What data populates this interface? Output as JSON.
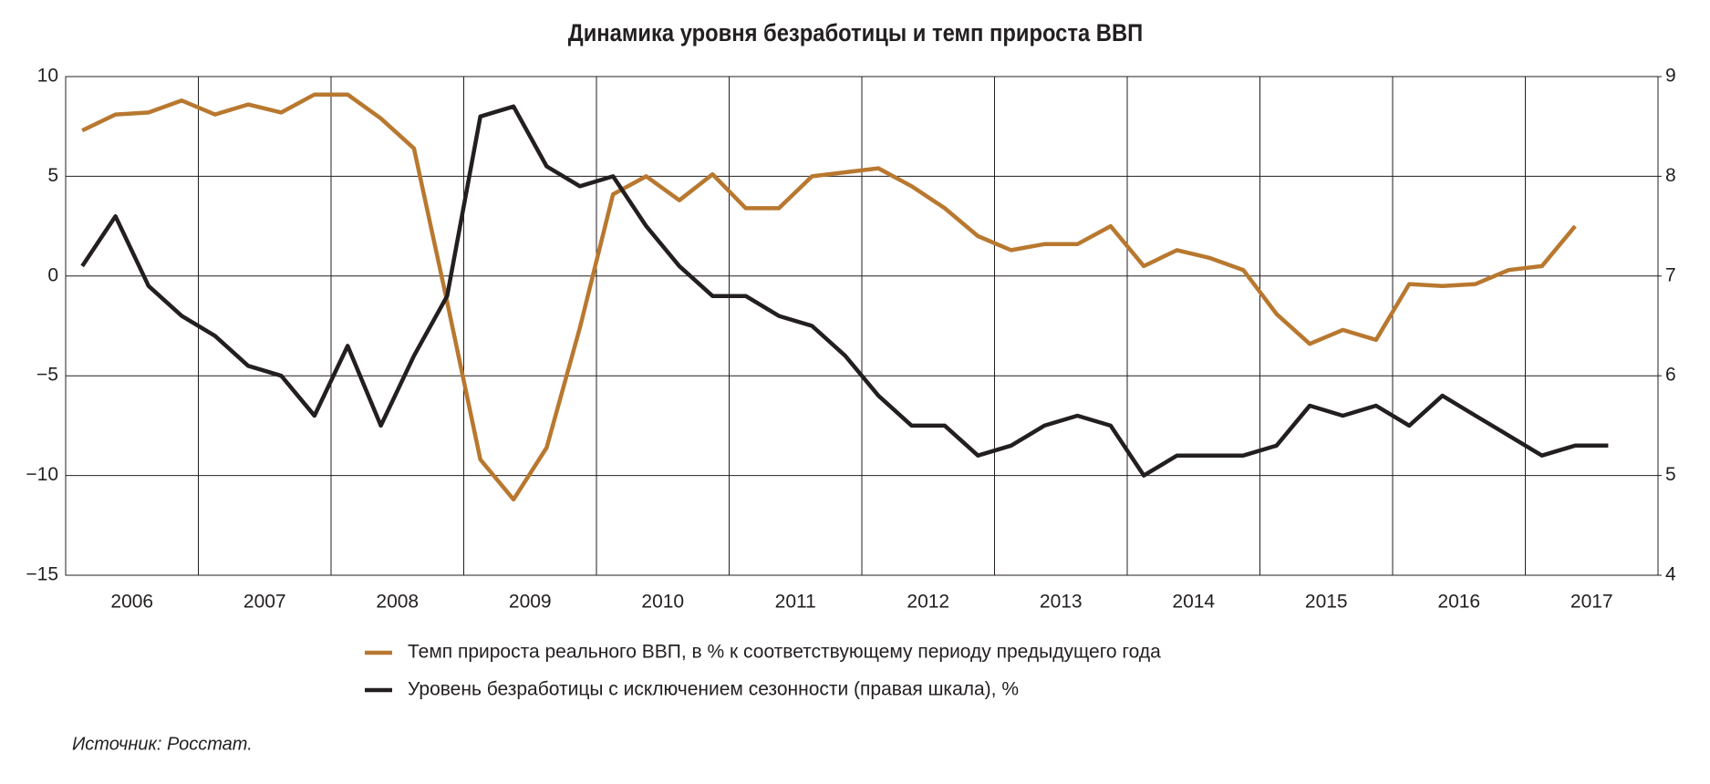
{
  "chart_data": {
    "type": "line",
    "title": "Динамика уровня безработицы и темп прироста ВВП",
    "categories": [
      "2006",
      null,
      null,
      null,
      "2007",
      null,
      null,
      null,
      "2008",
      null,
      null,
      null,
      "2009",
      null,
      null,
      null,
      "2010",
      null,
      null,
      null,
      "2011",
      null,
      null,
      null,
      "2012",
      null,
      null,
      null,
      "2013",
      null,
      null,
      null,
      "2014",
      null,
      null,
      null,
      "2015",
      null,
      null,
      null,
      "2016",
      null,
      null,
      null,
      "2017",
      null,
      null
    ],
    "series": [
      {
        "name": "Темп прироста реального ВВП, в % к соответствующему периоду предыдущего года",
        "color": "#b8782f",
        "values": [
          7.3,
          8.1,
          8.2,
          8.8,
          8.1,
          8.6,
          8.2,
          9.1,
          9.1,
          7.9,
          6.4,
          -1.3,
          -9.2,
          -11.2,
          -8.6,
          -2.6,
          4.1,
          5.0,
          3.8,
          5.1,
          3.4,
          3.4,
          5.0,
          5.2,
          5.4,
          4.5,
          3.4,
          2.0,
          1.3,
          1.6,
          1.6,
          2.5,
          0.5,
          1.3,
          0.9,
          0.3,
          -1.9,
          -3.4,
          -2.7,
          -3.2,
          -0.4,
          -0.5,
          -0.4,
          0.3,
          0.5,
          2.5,
          null
        ]
      },
      {
        "name": "Уровень безработицы с исключением сезонности (правая шкала), %",
        "color": "#231f20",
        "axis": "y2",
        "values": [
          7.1,
          7.6,
          6.9,
          6.6,
          6.4,
          6.1,
          6.0,
          5.6,
          6.3,
          5.5,
          6.2,
          6.8,
          8.6,
          8.7,
          8.1,
          7.9,
          8.0,
          7.5,
          7.1,
          6.8,
          6.8,
          6.6,
          6.5,
          6.2,
          5.8,
          5.5,
          5.5,
          5.2,
          5.3,
          5.5,
          5.6,
          5.5,
          5.0,
          5.2,
          5.2,
          5.2,
          5.3,
          5.7,
          5.6,
          5.7,
          5.5,
          5.8,
          5.6,
          5.4,
          5.2,
          5.3,
          5.3
        ]
      }
    ],
    "ylim": [
      -15,
      10
    ],
    "yticks": [
      {
        "value": -15,
        "label": "−15"
      },
      {
        "value": -10,
        "label": "−10"
      },
      {
        "value": -5,
        "label": "−5"
      },
      0,
      5,
      10
    ],
    "y2lim": [
      4,
      9
    ],
    "y2ticks": [
      4,
      5,
      6,
      7,
      8,
      9
    ],
    "grid": true,
    "source": "Источник: Росстат."
  }
}
